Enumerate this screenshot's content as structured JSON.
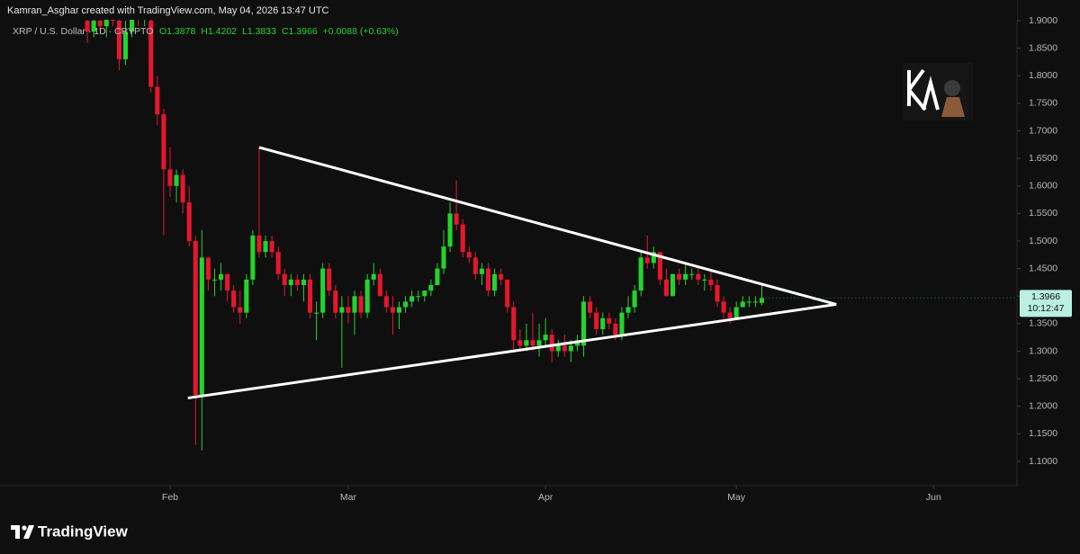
{
  "chart_data": {
    "type": "candlestick",
    "header": "Kamran_Asghar created with TradingView.com, May 04, 2026 13:47 UTC",
    "symbol": "XRP / U.S. Dollar · 1D · CRYPTO",
    "legend_values": [
      "O1.3878",
      "H1.4202",
      "L1.3833",
      "C1.3966",
      "+0.0088 (+0.63%)"
    ],
    "price_label": {
      "price": "1.3966",
      "countdown": "10:12:47"
    },
    "brand": "TradingView",
    "up_color": "#22d42a",
    "down_color": "#e5172d",
    "open": [
      1.9,
      1.88,
      1.9,
      1.89,
      1.91,
      1.9,
      1.83,
      1.88,
      1.92,
      1.91,
      1.9,
      1.78,
      1.73,
      1.63,
      1.6,
      1.62,
      1.57,
      1.5,
      1.22,
      1.47,
      1.43,
      1.43,
      1.44,
      1.41,
      1.38,
      1.37,
      1.43,
      1.51,
      1.48,
      1.5,
      1.48,
      1.44,
      1.42,
      1.43,
      1.42,
      1.43,
      1.37,
      1.37,
      1.45,
      1.41,
      1.37,
      1.38,
      1.37,
      1.4,
      1.37,
      1.43,
      1.44,
      1.4,
      1.38,
      1.37,
      1.38,
      1.39,
      1.4,
      1.4,
      1.41,
      1.42,
      1.45,
      1.49,
      1.55,
      1.53,
      1.48,
      1.47,
      1.44,
      1.45,
      1.41,
      1.44,
      1.43,
      1.38,
      1.32,
      1.31,
      1.32,
      1.31,
      1.32,
      1.33,
      1.3,
      1.31,
      1.3,
      1.31,
      1.31,
      1.39,
      1.37,
      1.34,
      1.36,
      1.35,
      1.33,
      1.37,
      1.38,
      1.41,
      1.47,
      1.46,
      1.48,
      1.43,
      1.4,
      1.44,
      1.43,
      1.44,
      1.44,
      1.43,
      1.43,
      1.42,
      1.39,
      1.37,
      1.36,
      1.38,
      1.39,
      1.39,
      1.3878
    ],
    "high": [
      1.92,
      1.91,
      1.93,
      1.92,
      1.94,
      1.92,
      1.9,
      1.93,
      1.95,
      1.93,
      1.92,
      1.8,
      1.74,
      1.67,
      1.63,
      1.63,
      1.6,
      1.51,
      1.52,
      1.47,
      1.45,
      1.46,
      1.44,
      1.42,
      1.41,
      1.44,
      1.52,
      1.67,
      1.51,
      1.51,
      1.49,
      1.45,
      1.44,
      1.44,
      1.44,
      1.44,
      1.39,
      1.46,
      1.46,
      1.42,
      1.4,
      1.4,
      1.41,
      1.41,
      1.44,
      1.46,
      1.45,
      1.41,
      1.4,
      1.39,
      1.4,
      1.41,
      1.41,
      1.41,
      1.43,
      1.46,
      1.52,
      1.57,
      1.61,
      1.54,
      1.49,
      1.48,
      1.46,
      1.46,
      1.45,
      1.45,
      1.43,
      1.39,
      1.34,
      1.35,
      1.37,
      1.35,
      1.36,
      1.34,
      1.32,
      1.33,
      1.32,
      1.33,
      1.4,
      1.4,
      1.38,
      1.37,
      1.37,
      1.36,
      1.38,
      1.4,
      1.42,
      1.48,
      1.51,
      1.49,
      1.48,
      1.45,
      1.44,
      1.45,
      1.46,
      1.45,
      1.45,
      1.44,
      1.45,
      1.43,
      1.4,
      1.38,
      1.39,
      1.4,
      1.4,
      1.4,
      1.4202
    ],
    "low": [
      1.86,
      1.87,
      1.88,
      1.87,
      1.89,
      1.81,
      1.82,
      1.87,
      1.89,
      1.89,
      1.77,
      1.71,
      1.51,
      1.58,
      1.57,
      1.55,
      1.49,
      1.13,
      1.12,
      1.41,
      1.4,
      1.41,
      1.39,
      1.37,
      1.35,
      1.36,
      1.42,
      1.47,
      1.47,
      1.47,
      1.43,
      1.4,
      1.4,
      1.41,
      1.39,
      1.36,
      1.32,
      1.36,
      1.4,
      1.36,
      1.27,
      1.35,
      1.33,
      1.36,
      1.36,
      1.42,
      1.4,
      1.37,
      1.33,
      1.34,
      1.37,
      1.38,
      1.39,
      1.39,
      1.4,
      1.42,
      1.44,
      1.48,
      1.52,
      1.47,
      1.46,
      1.43,
      1.42,
      1.4,
      1.4,
      1.42,
      1.37,
      1.3,
      1.3,
      1.3,
      1.3,
      1.29,
      1.31,
      1.28,
      1.29,
      1.29,
      1.28,
      1.3,
      1.29,
      1.36,
      1.33,
      1.33,
      1.34,
      1.32,
      1.32,
      1.36,
      1.37,
      1.4,
      1.45,
      1.45,
      1.42,
      1.4,
      1.4,
      1.42,
      1.42,
      1.43,
      1.42,
      1.41,
      1.41,
      1.38,
      1.36,
      1.35,
      1.36,
      1.38,
      1.38,
      1.38,
      1.3833
    ],
    "close": [
      1.88,
      1.9,
      1.89,
      1.91,
      1.9,
      1.83,
      1.88,
      1.92,
      1.91,
      1.92,
      1.78,
      1.73,
      1.63,
      1.6,
      1.62,
      1.57,
      1.5,
      1.22,
      1.47,
      1.43,
      1.43,
      1.44,
      1.41,
      1.38,
      1.37,
      1.43,
      1.51,
      1.48,
      1.5,
      1.48,
      1.44,
      1.42,
      1.43,
      1.42,
      1.43,
      1.37,
      1.37,
      1.45,
      1.41,
      1.37,
      1.38,
      1.37,
      1.4,
      1.37,
      1.43,
      1.44,
      1.4,
      1.38,
      1.37,
      1.38,
      1.39,
      1.4,
      1.4,
      1.41,
      1.42,
      1.45,
      1.49,
      1.55,
      1.53,
      1.48,
      1.47,
      1.44,
      1.45,
      1.41,
      1.44,
      1.43,
      1.38,
      1.32,
      1.31,
      1.32,
      1.31,
      1.32,
      1.33,
      1.3,
      1.31,
      1.3,
      1.31,
      1.32,
      1.39,
      1.37,
      1.34,
      1.36,
      1.35,
      1.33,
      1.37,
      1.38,
      1.41,
      1.47,
      1.46,
      1.48,
      1.43,
      1.4,
      1.44,
      1.43,
      1.44,
      1.44,
      1.43,
      1.43,
      1.42,
      1.39,
      1.37,
      1.36,
      1.38,
      1.39,
      1.39,
      1.39,
      1.3966
    ],
    "trend_lines": [
      {
        "x": [
          27,
          117.7
        ],
        "y": [
          1.67,
          1.385
        ]
      },
      {
        "x": [
          15.8,
          117.7
        ],
        "y": [
          1.215,
          1.385
        ]
      }
    ],
    "xlim": [
      -13.73,
      146.1
    ],
    "xticks": [
      {
        "value": 13,
        "label": "Feb"
      },
      {
        "value": 41,
        "label": "Mar"
      },
      {
        "value": 72,
        "label": "Apr"
      },
      {
        "value": 102,
        "label": "May"
      },
      {
        "value": 133,
        "label": "Jun"
      }
    ],
    "ylim": [
      1.0559,
      1.9376
    ],
    "yticks": [
      {
        "value": 1.1,
        "label": "1.1000"
      },
      {
        "value": 1.15,
        "label": "1.1500"
      },
      {
        "value": 1.2,
        "label": "1.2000"
      },
      {
        "value": 1.25,
        "label": "1.2500"
      },
      {
        "value": 1.3,
        "label": "1.3000"
      },
      {
        "value": 1.35,
        "label": "1.3500"
      },
      {
        "value": 1.4,
        "label": "1.4000"
      },
      {
        "value": 1.45,
        "label": "1.4500"
      },
      {
        "value": 1.5,
        "label": "1.5000"
      },
      {
        "value": 1.55,
        "label": "1.5500"
      },
      {
        "value": 1.6,
        "label": "1.6000"
      },
      {
        "value": 1.65,
        "label": "1.6500"
      },
      {
        "value": 1.7,
        "label": "1.7000"
      },
      {
        "value": 1.75,
        "label": "1.7500"
      },
      {
        "value": 1.8,
        "label": "1.8000"
      },
      {
        "value": 1.85,
        "label": "1.8500"
      },
      {
        "value": 1.9,
        "label": "1.9000"
      }
    ]
  }
}
